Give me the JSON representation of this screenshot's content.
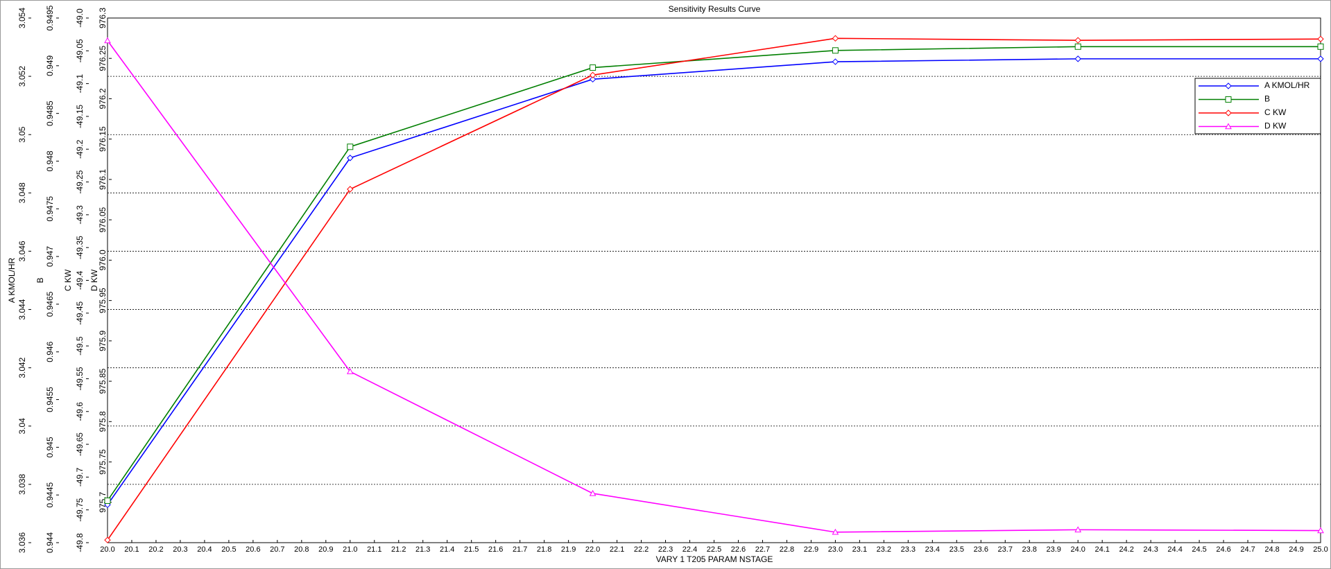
{
  "chart_data": {
    "type": "line",
    "title": "Sensitivity Results Curve",
    "xlabel": "VARY   1 T205 PARAM NSTAGE",
    "x": [
      20,
      21,
      22,
      23,
      24,
      25
    ],
    "xlim": [
      20,
      25
    ],
    "xticks": [
      {
        "value": 20,
        "label": "20.0"
      },
      20.1,
      20.2,
      20.3,
      20.4,
      20.5,
      20.6,
      20.7,
      20.8,
      20.9,
      {
        "value": 21,
        "label": "21.0"
      },
      21.1,
      21.2,
      21.3,
      21.4,
      21.5,
      21.6,
      21.7,
      21.8,
      21.9,
      {
        "value": 22,
        "label": "22.0"
      },
      22.1,
      22.2,
      22.3,
      22.4,
      22.5,
      22.6,
      22.7,
      22.8,
      22.9,
      {
        "value": 23,
        "label": "23.0"
      },
      23.1,
      23.2,
      23.3,
      23.4,
      23.5,
      23.6,
      23.7,
      23.8,
      23.9,
      {
        "value": 24,
        "label": "24.0"
      },
      24.1,
      24.2,
      24.3,
      24.4,
      24.5,
      24.6,
      24.7,
      24.8,
      24.9,
      {
        "value": 25,
        "label": "25.0"
      }
    ],
    "grid": true,
    "legend": "upper right",
    "series": [
      {
        "name": "A KMOL/HR",
        "ylabel": "A KMOL/HR",
        "color": "#0000ff",
        "marker": "diamond",
        "values": [
          3.0373,
          3.0492,
          3.0519,
          3.0525,
          3.0526,
          3.0526
        ],
        "ylim": [
          3.036,
          3.054
        ],
        "yticks": [
          3.036,
          3.038,
          3.04,
          3.042,
          3.044,
          3.046,
          3.048,
          3.05,
          3.052,
          3.054
        ]
      },
      {
        "name": "B",
        "ylabel": "B",
        "color": "#007f00",
        "marker": "square",
        "values": [
          0.94444,
          0.94815,
          0.94898,
          0.94916,
          0.9492,
          0.9492
        ],
        "ylim": [
          0.944,
          0.9495
        ],
        "yticks": [
          0.944,
          0.9445,
          0.945,
          0.9455,
          0.946,
          0.9465,
          0.947,
          0.9475,
          0.948,
          0.9485,
          0.949,
          0.9495
        ]
      },
      {
        "name": "C KW",
        "ylabel": "C KW",
        "color": "#ff0000",
        "marker": "diamond",
        "values": [
          -49.796,
          -49.261,
          -49.087,
          -49.031,
          -49.034,
          -49.032
        ],
        "ylim": [
          -49.8,
          -49.0
        ],
        "yticks": [
          -49.8,
          -49.75,
          -49.7,
          -49.65,
          -49.6,
          -49.55,
          -49.5,
          -49.45,
          -49.4,
          -49.35,
          -49.3,
          -49.25,
          -49.2,
          -49.15,
          -49.1,
          -49.05,
          {
            "value": -49,
            "label": "-49.0"
          }
        ]
      },
      {
        "name": "D KW",
        "ylabel": "D KW",
        "color": "#ff00ff",
        "marker": "triangle",
        "values": [
          976.272,
          975.862,
          975.711,
          975.663,
          975.666,
          975.665
        ],
        "ylim": [
          975.65,
          976.3
        ],
        "yticks": [
          975.7,
          975.75,
          975.8,
          975.85,
          975.9,
          975.95,
          {
            "value": 976,
            "label": "976.0"
          },
          976.05,
          976.1,
          976.15,
          976.2,
          976.25,
          976.3
        ]
      }
    ]
  }
}
